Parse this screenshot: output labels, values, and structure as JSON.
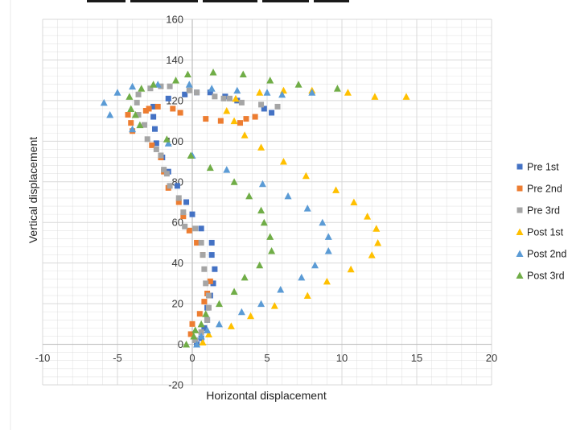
{
  "chart_data": {
    "type": "scatter",
    "title": "",
    "xlabel": "Horizontal displacement",
    "ylabel": "Vertical displacement",
    "xlim": [
      -10,
      20
    ],
    "ylim": [
      -20,
      160
    ],
    "xticks": [
      -10,
      -5,
      0,
      5,
      10,
      15,
      20
    ],
    "yticks": [
      -20,
      0,
      20,
      40,
      60,
      80,
      100,
      120,
      140,
      160
    ],
    "grid": true,
    "legend_position": "right",
    "series": [
      {
        "name": "Pre 1st",
        "marker": "square",
        "color": "#4472C4",
        "points": [
          [
            0.3,
            0
          ],
          [
            0.6,
            3
          ],
          [
            0.8,
            8
          ],
          [
            1,
            12
          ],
          [
            1,
            18
          ],
          [
            1.2,
            24
          ],
          [
            1.4,
            30
          ],
          [
            1.5,
            37
          ],
          [
            1.3,
            44
          ],
          [
            1.3,
            50
          ],
          [
            0.6,
            57
          ],
          [
            0,
            64
          ],
          [
            -0.4,
            70
          ],
          [
            -1,
            78
          ],
          [
            -1.6,
            85
          ],
          [
            -2,
            92
          ],
          [
            -2.4,
            99
          ],
          [
            -2.5,
            106
          ],
          [
            -2.6,
            112
          ],
          [
            -2.6,
            117
          ],
          [
            -1.6,
            121
          ],
          [
            -0.5,
            123
          ],
          [
            0.3,
            124
          ],
          [
            1.2,
            124
          ],
          [
            2.2,
            122
          ],
          [
            3,
            120
          ],
          [
            4.8,
            116
          ],
          [
            5.3,
            114
          ]
        ]
      },
      {
        "name": "Pre 2nd",
        "marker": "square",
        "color": "#ED7D31",
        "points": [
          [
            -0.1,
            5
          ],
          [
            0,
            10
          ],
          [
            0.5,
            15
          ],
          [
            0.8,
            21
          ],
          [
            1,
            25
          ],
          [
            1.2,
            31
          ],
          [
            0.7,
            44
          ],
          [
            0.3,
            50
          ],
          [
            -0.2,
            56
          ],
          [
            -0.6,
            63
          ],
          [
            -0.9,
            70
          ],
          [
            -1.6,
            77
          ],
          [
            -1.9,
            85
          ],
          [
            -2.1,
            92
          ],
          [
            -2.7,
            98
          ],
          [
            -4,
            105
          ],
          [
            -4.1,
            109
          ],
          [
            -4.3,
            113
          ],
          [
            -3.1,
            115
          ],
          [
            -2.9,
            116
          ],
          [
            -2.3,
            117
          ],
          [
            -1.3,
            116
          ],
          [
            -0.8,
            114
          ],
          [
            0.9,
            111
          ],
          [
            1.9,
            110
          ],
          [
            3.2,
            109
          ],
          [
            3.6,
            111
          ],
          [
            4.2,
            112
          ]
        ]
      },
      {
        "name": "Pre 3rd",
        "marker": "square",
        "color": "#A5A5A5",
        "points": [
          [
            0.2,
            2
          ],
          [
            0.6,
            6
          ],
          [
            1,
            12
          ],
          [
            1.1,
            18
          ],
          [
            1.1,
            24
          ],
          [
            0.9,
            30
          ],
          [
            0.8,
            37
          ],
          [
            0.7,
            44
          ],
          [
            0.6,
            50
          ],
          [
            0.2,
            57
          ],
          [
            -0.5,
            58
          ],
          [
            -0.6,
            65
          ],
          [
            -0.9,
            72
          ],
          [
            -1.5,
            78
          ],
          [
            -1.7,
            84
          ],
          [
            -1.9,
            86
          ],
          [
            -2.1,
            93
          ],
          [
            -2.4,
            96
          ],
          [
            -3,
            101
          ],
          [
            -3.2,
            108
          ],
          [
            -3.6,
            113
          ],
          [
            -3.7,
            119
          ],
          [
            -3.6,
            123
          ],
          [
            -2.8,
            126
          ],
          [
            -2.1,
            127
          ],
          [
            -1.5,
            127
          ],
          [
            -0.2,
            125
          ],
          [
            0.3,
            124
          ],
          [
            1.5,
            122
          ],
          [
            2.1,
            121
          ],
          [
            2.5,
            121
          ],
          [
            3.3,
            119
          ],
          [
            4.6,
            118
          ],
          [
            5.7,
            117
          ]
        ]
      },
      {
        "name": "Post 1st",
        "marker": "triangle",
        "color": "#FFC000",
        "points": [
          [
            0.7,
            1
          ],
          [
            1.1,
            5
          ],
          [
            2.6,
            9
          ],
          [
            3.9,
            14
          ],
          [
            5.5,
            19
          ],
          [
            7.7,
            24
          ],
          [
            9,
            31
          ],
          [
            10.6,
            37
          ],
          [
            12,
            44
          ],
          [
            12.4,
            50
          ],
          [
            12.3,
            57
          ],
          [
            11.7,
            63
          ],
          [
            10.8,
            70
          ],
          [
            9.6,
            76
          ],
          [
            7.6,
            83
          ],
          [
            6.1,
            90
          ],
          [
            4.6,
            97
          ],
          [
            3.5,
            103
          ],
          [
            2.8,
            110
          ],
          [
            2.3,
            115
          ],
          [
            2.9,
            121
          ],
          [
            4.5,
            124
          ],
          [
            6.1,
            125
          ],
          [
            8,
            125
          ],
          [
            10.4,
            124
          ],
          [
            12.2,
            122
          ],
          [
            14.3,
            122
          ]
        ]
      },
      {
        "name": "Post 2nd",
        "marker": "triangle",
        "color": "#5B9BD5",
        "points": [
          [
            0.3,
            0
          ],
          [
            0.6,
            4
          ],
          [
            1,
            7
          ],
          [
            1.8,
            10
          ],
          [
            3.3,
            16
          ],
          [
            4.6,
            20
          ],
          [
            5.9,
            27
          ],
          [
            7.3,
            33
          ],
          [
            8.2,
            39
          ],
          [
            9.1,
            46
          ],
          [
            9.1,
            53
          ],
          [
            8.7,
            60
          ],
          [
            7.7,
            67
          ],
          [
            6.4,
            73
          ],
          [
            4.7,
            79
          ],
          [
            2.3,
            86
          ],
          [
            0,
            93
          ],
          [
            -1.6,
            99
          ],
          [
            -4,
            106
          ],
          [
            -5.5,
            113
          ],
          [
            -5.9,
            119
          ],
          [
            -5,
            124
          ],
          [
            -4,
            127
          ],
          [
            -2.3,
            128
          ],
          [
            -0.2,
            128
          ],
          [
            1.3,
            126
          ],
          [
            3,
            125
          ],
          [
            5,
            124
          ],
          [
            6,
            123
          ],
          [
            8,
            124
          ]
        ]
      },
      {
        "name": "Post 3rd",
        "marker": "triangle",
        "color": "#70AD47",
        "points": [
          [
            -0.4,
            0
          ],
          [
            0.1,
            4
          ],
          [
            0.2,
            7
          ],
          [
            0.6,
            10
          ],
          [
            0.9,
            15
          ],
          [
            1.8,
            20
          ],
          [
            2.8,
            26
          ],
          [
            3.5,
            33
          ],
          [
            4.5,
            39
          ],
          [
            5.3,
            46
          ],
          [
            5.2,
            53
          ],
          [
            4.8,
            60
          ],
          [
            4.6,
            66
          ],
          [
            3.8,
            73
          ],
          [
            2.8,
            80
          ],
          [
            1.2,
            87
          ],
          [
            -0.1,
            93
          ],
          [
            -1.7,
            101
          ],
          [
            -3.5,
            108
          ],
          [
            -3.8,
            113
          ],
          [
            -4.1,
            116
          ],
          [
            -4.2,
            122
          ],
          [
            -3.4,
            126
          ],
          [
            -2.6,
            128
          ],
          [
            -1.1,
            130
          ],
          [
            -0.3,
            133
          ],
          [
            1.4,
            134
          ],
          [
            3.4,
            133
          ],
          [
            5.2,
            130
          ],
          [
            7.1,
            128
          ],
          [
            9.7,
            126
          ]
        ]
      }
    ]
  },
  "colors": {
    "grid": "#d9d9d9",
    "axis": "#bfbfbf",
    "background": "#ffffff"
  }
}
